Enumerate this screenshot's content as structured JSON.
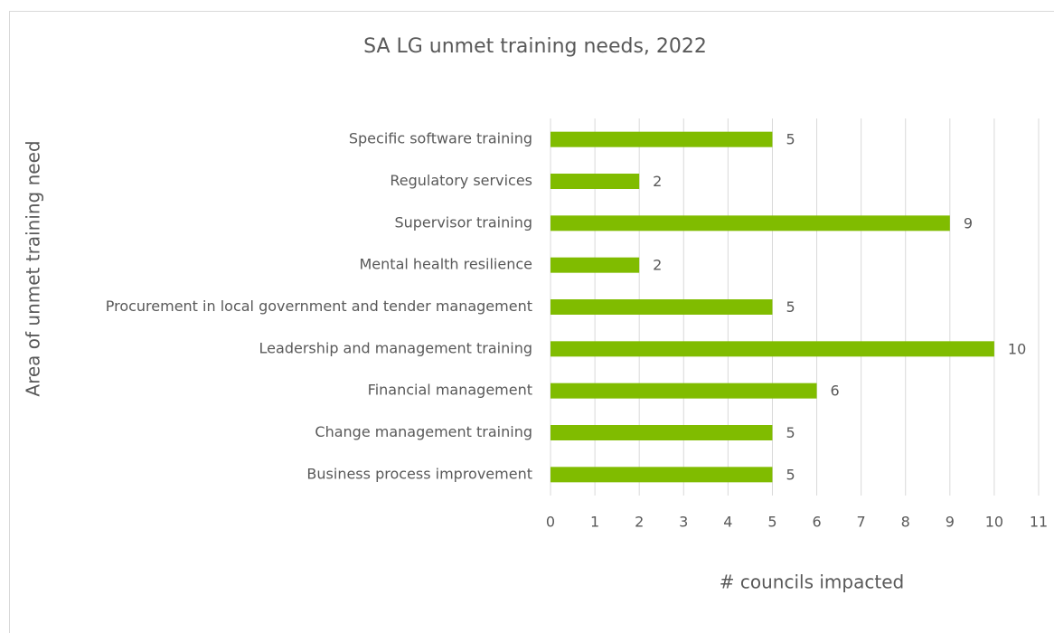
{
  "chart_data": {
    "type": "barh",
    "title": "SA LG unmet training needs, 2022",
    "x_label": "# councils impacted",
    "y_label": "Area of unmet training need",
    "categories": [
      "Specific software training",
      "Regulatory services",
      "Supervisor training",
      "Mental health resilience",
      "Procurement in local government and tender management",
      "Leadership and management training",
      "Financial management",
      "Change management training",
      "Business process improvement"
    ],
    "values": [
      5,
      2,
      9,
      2,
      5,
      10,
      6,
      5,
      5
    ],
    "color": "#80bc00",
    "xlim": [
      0,
      11
    ],
    "xticks": [
      0,
      1,
      2,
      3,
      4,
      5,
      6,
      7,
      8,
      9,
      10,
      11
    ],
    "grid": true,
    "data_labels": true
  }
}
